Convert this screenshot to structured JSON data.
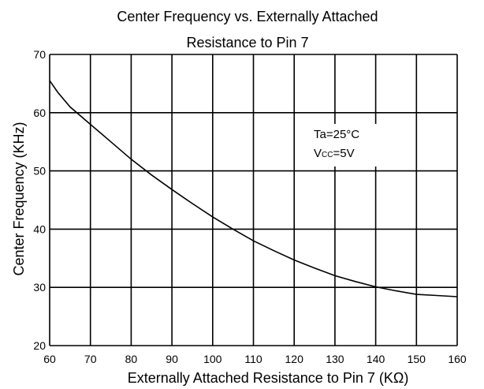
{
  "chart_data": {
    "type": "line",
    "title_line1": "Center Frequency vs. Externally Attached",
    "title_line2": "Resistance to Pin 7",
    "xlabel": "Externally Attached Resistance to Pin 7 (KΩ)",
    "ylabel": "Center Frequency (KHz)",
    "xlim": [
      60,
      160
    ],
    "ylim": [
      20,
      70
    ],
    "xticks": [
      60,
      70,
      80,
      90,
      100,
      110,
      120,
      130,
      140,
      150,
      160
    ],
    "yticks": [
      20,
      30,
      40,
      50,
      60,
      70
    ],
    "grid": true,
    "annotation": {
      "line1": "Ta=25°C",
      "line2_main": "V",
      "line2_sub": "CC",
      "line2_rest": "=5V"
    },
    "series": [
      {
        "x": [
          60,
          62,
          65,
          70,
          75,
          80,
          85,
          90,
          95,
          100,
          105,
          110,
          115,
          120,
          125,
          130,
          135,
          140,
          145,
          150,
          155,
          160
        ],
        "y": [
          65.5,
          63.5,
          61.0,
          58.0,
          55.0,
          52.0,
          49.3,
          46.8,
          44.4,
          42.1,
          40.0,
          38.0,
          36.3,
          34.7,
          33.3,
          32.0,
          31.0,
          30.1,
          29.4,
          28.8,
          28.6,
          28.4
        ]
      }
    ]
  }
}
